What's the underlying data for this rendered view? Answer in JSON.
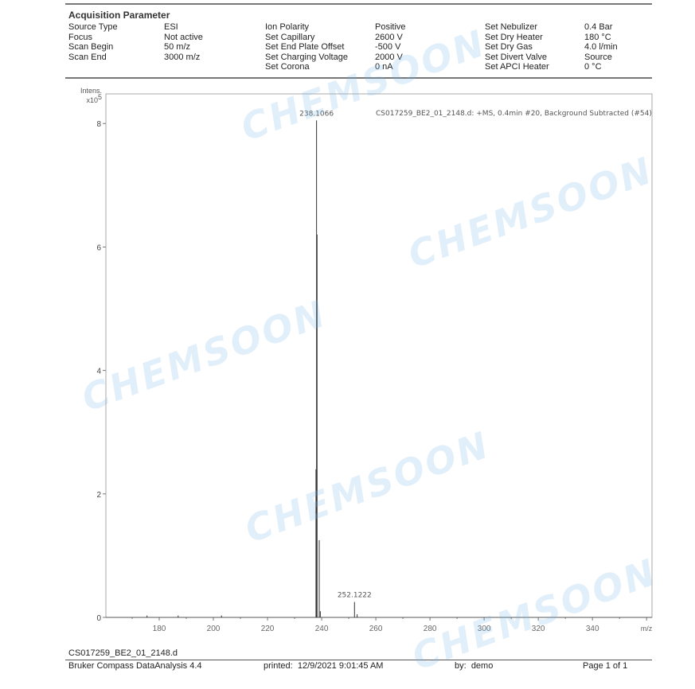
{
  "header": {
    "title": "Acquisition Parameter",
    "columns": [
      {
        "labels": [
          "Source Type",
          "Focus",
          "Scan Begin",
          "Scan End"
        ],
        "values": [
          "ESI",
          "Not active",
          "50 m/z",
          "3000 m/z"
        ]
      },
      {
        "labels": [
          "Ion Polarity",
          "Set Capillary",
          "Set End Plate Offset",
          "Set Charging Voltage",
          "Set Corona"
        ],
        "values": [
          "Positive",
          "2600 V",
          "-500 V",
          "2000 V",
          "0 nA"
        ]
      },
      {
        "labels": [
          "Set Nebulizer",
          "Set Dry Heater",
          "Set Dry Gas",
          "Set Divert Valve",
          "Set APCI Heater"
        ],
        "values": [
          "0.4 Bar",
          "180 °C",
          "4.0 l/min",
          "Source",
          "0 °C"
        ]
      }
    ]
  },
  "watermark": "CHEMSOON",
  "chart_data": {
    "type": "line",
    "title": "CS017259_BE2_01_2148.d: +MS, 0.4min #20, Background Subtracted (#54)",
    "xlabel": "m/z",
    "ylabel": "Intens.",
    "yscale_label": "x10",
    "yscale_exp": "5",
    "xlim": [
      160.3,
      362
    ],
    "ylim": [
      0,
      8.48
    ],
    "xticks": [
      180,
      200,
      220,
      240,
      260,
      280,
      300,
      320,
      340
    ],
    "yticks": [
      0,
      2,
      4,
      6,
      8
    ],
    "peaks": [
      {
        "mz": 175.5,
        "intensity": 0.03
      },
      {
        "mz": 187.0,
        "intensity": 0.03
      },
      {
        "mz": 203.0,
        "intensity": 0.03
      },
      {
        "mz": 237.9,
        "intensity": 2.4
      },
      {
        "mz": 238.1066,
        "intensity": 8.05,
        "label": "238.1066"
      },
      {
        "mz": 238.3,
        "intensity": 6.2
      },
      {
        "mz": 239.1,
        "intensity": 1.25
      },
      {
        "mz": 239.5,
        "intensity": 0.1
      },
      {
        "mz": 252.1222,
        "intensity": 0.25,
        "label": "252.1222"
      },
      {
        "mz": 253.1,
        "intensity": 0.05
      }
    ],
    "color": "#333333"
  },
  "footer": {
    "filename": "CS017259_BE2_01_2148.d",
    "software": "Bruker Compass DataAnalysis 4.4",
    "printed_label": "printed:",
    "printed_value": "12/9/2021 9:01:45 AM",
    "by_label": "by:",
    "by_value": "demo",
    "page": "Page 1 of 1"
  }
}
